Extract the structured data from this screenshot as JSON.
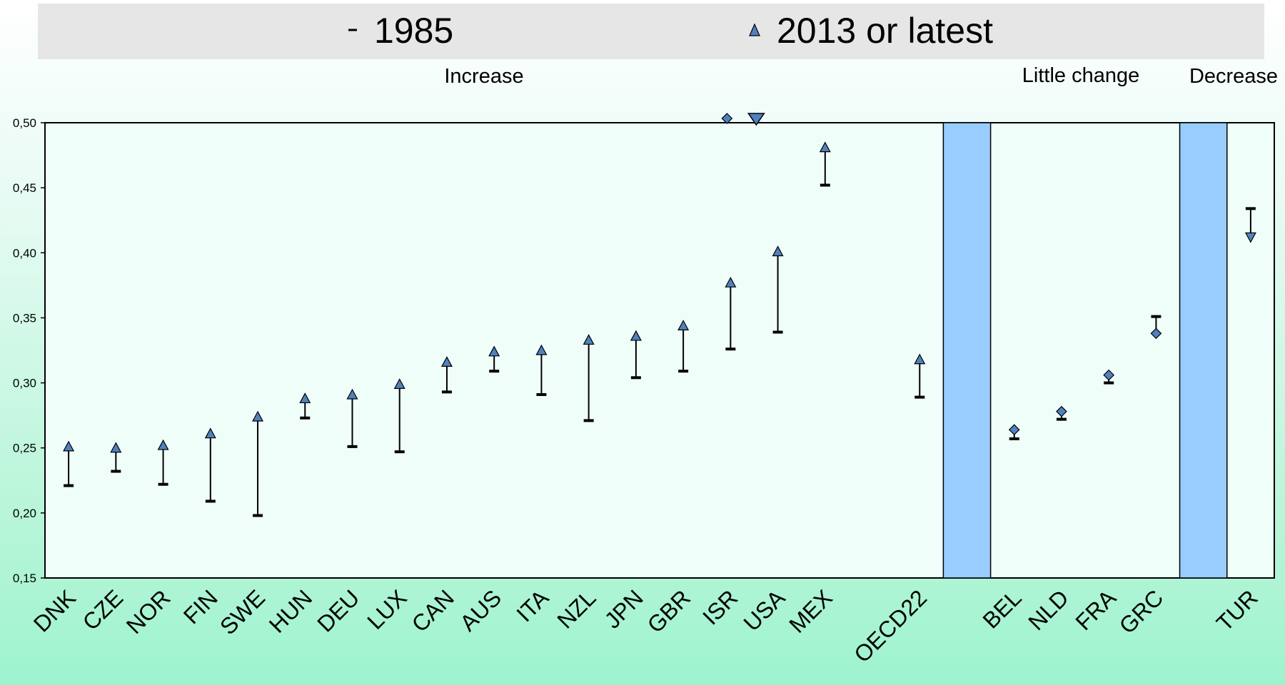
{
  "chart_data": {
    "type": "range-dot",
    "legend": [
      {
        "label": "1985",
        "marker": "dash"
      },
      {
        "label": "2013 or latest",
        "marker": "triangle-up"
      }
    ],
    "groups": [
      {
        "label": "Increase"
      },
      {
        "label": "Little change"
      },
      {
        "label": "Decrease"
      }
    ],
    "ylim": [
      0.15,
      0.5
    ],
    "yticks": [
      "0,50",
      "0,45",
      "0,40",
      "0,35",
      "0,30",
      "0,25",
      "0,20",
      "0,15"
    ],
    "ytick_values": [
      0.5,
      0.45,
      0.4,
      0.35,
      0.3,
      0.25,
      0.2,
      0.15
    ],
    "categories": [
      {
        "label": "DNK",
        "v1985": 0.221,
        "v2013": 0.251,
        "marker": "triangle-up"
      },
      {
        "label": "CZE",
        "v1985": 0.232,
        "v2013": 0.25,
        "marker": "triangle-up"
      },
      {
        "label": "NOR",
        "v1985": 0.222,
        "v2013": 0.252,
        "marker": "triangle-up"
      },
      {
        "label": "FIN",
        "v1985": 0.209,
        "v2013": 0.261,
        "marker": "triangle-up"
      },
      {
        "label": "SWE",
        "v1985": 0.198,
        "v2013": 0.274,
        "marker": "triangle-up"
      },
      {
        "label": "HUN",
        "v1985": 0.273,
        "v2013": 0.288,
        "marker": "triangle-up"
      },
      {
        "label": "DEU",
        "v1985": 0.251,
        "v2013": 0.291,
        "marker": "triangle-up"
      },
      {
        "label": "LUX",
        "v1985": 0.247,
        "v2013": 0.299,
        "marker": "triangle-up"
      },
      {
        "label": "CAN",
        "v1985": 0.293,
        "v2013": 0.316,
        "marker": "triangle-up"
      },
      {
        "label": "AUS",
        "v1985": 0.309,
        "v2013": 0.324,
        "marker": "triangle-up"
      },
      {
        "label": "ITA",
        "v1985": 0.291,
        "v2013": 0.325,
        "marker": "triangle-up"
      },
      {
        "label": "NZL",
        "v1985": 0.271,
        "v2013": 0.333,
        "marker": "triangle-up"
      },
      {
        "label": "JPN",
        "v1985": 0.304,
        "v2013": 0.336,
        "marker": "triangle-up"
      },
      {
        "label": "GBR",
        "v1985": 0.309,
        "v2013": 0.344,
        "marker": "triangle-up"
      },
      {
        "label": "ISR",
        "v1985": 0.326,
        "v2013": 0.377,
        "marker": "triangle-up"
      },
      {
        "label": "USA",
        "v1985": 0.339,
        "v2013": 0.401,
        "marker": "triangle-up"
      },
      {
        "label": "MEX",
        "v1985": 0.452,
        "v2013": 0.481,
        "marker": "triangle-up"
      },
      {
        "label": "",
        "v1985": null,
        "v2013": null
      },
      {
        "label": "OECD22",
        "v1985": 0.289,
        "v2013": 0.318,
        "marker": "triangle-up"
      },
      {
        "label": "",
        "v1985": null,
        "v2013": null,
        "separator": true
      },
      {
        "label": "BEL",
        "v1985": 0.257,
        "v2013": 0.264,
        "marker": "diamond"
      },
      {
        "label": "NLD",
        "v1985": 0.272,
        "v2013": 0.278,
        "marker": "diamond"
      },
      {
        "label": "FRA",
        "v1985": 0.3,
        "v2013": 0.306,
        "marker": "diamond"
      },
      {
        "label": "GRC",
        "v1985": 0.351,
        "v2013": 0.338,
        "marker": "diamond"
      },
      {
        "label": "",
        "v1985": null,
        "v2013": null,
        "separator": true
      },
      {
        "label": "TUR",
        "v1985": 0.434,
        "v2013": 0.412,
        "marker": "triangle-down"
      }
    ],
    "colors": {
      "marker_fill": "#4f81bd",
      "separator_fill": "#99ccff",
      "plot_bg": "#f0fefa",
      "legend_bg": "#e6e6e6"
    }
  }
}
